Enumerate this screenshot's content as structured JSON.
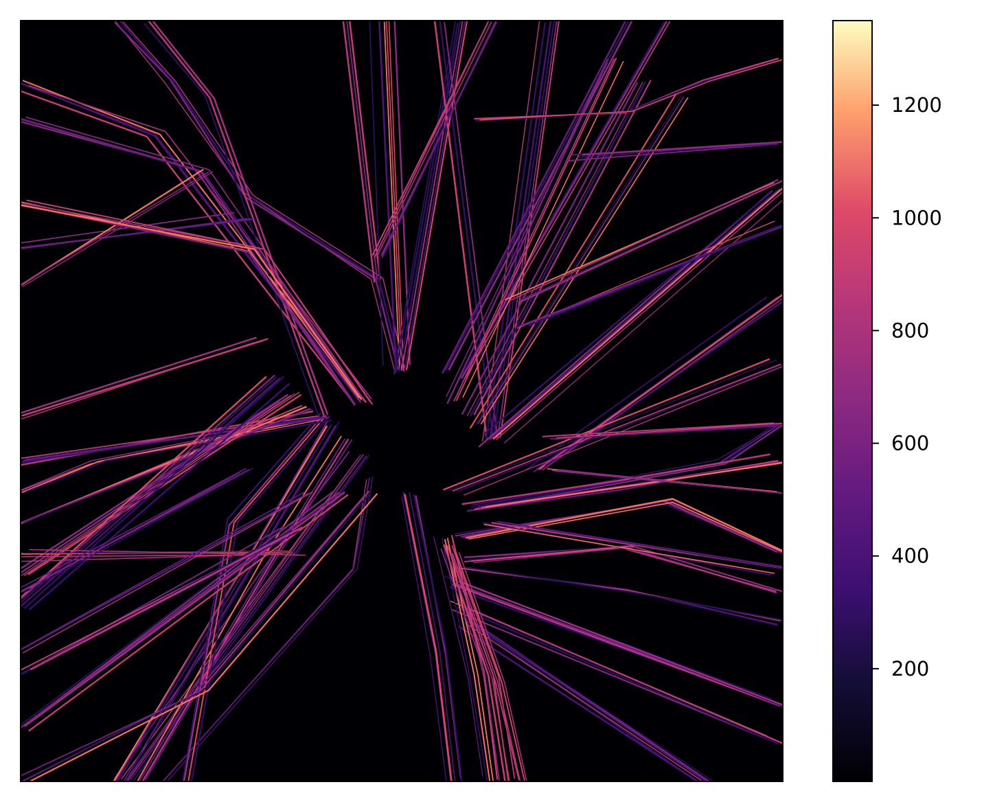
{
  "chart_data": {
    "type": "heatmap",
    "title": "",
    "xlabel": "",
    "ylabel": "",
    "colormap": "magma",
    "colorbar": {
      "range": [
        0,
        1350
      ],
      "ticks": [
        200,
        400,
        600,
        800,
        1000,
        1200
      ],
      "tick_labels": [
        "200",
        "400",
        "600",
        "800",
        "1000",
        "1200"
      ]
    },
    "axes_ticks_visible": false,
    "background_color": "#000004",
    "description_values": {
      "background_value": 0
    },
    "segments": [
      [
        [
          0.5,
          0.46
        ],
        [
          0.47,
          0.34
        ],
        [
          0.3,
          0.23
        ],
        [
          0.2,
          0.08
        ],
        [
          0.13,
          0.0
        ]
      ],
      [
        [
          0.47,
          0.34
        ],
        [
          0.43,
          0.0
        ]
      ],
      [
        [
          0.5,
          0.46
        ],
        [
          0.48,
          0.0
        ]
      ],
      [
        [
          0.5,
          0.46
        ],
        [
          0.58,
          0.0
        ]
      ],
      [
        [
          0.62,
          0.55
        ],
        [
          0.55,
          0.0
        ]
      ],
      [
        [
          0.62,
          0.55
        ],
        [
          0.7,
          0.0
        ]
      ],
      [
        [
          0.45,
          0.5
        ],
        [
          0.18,
          0.15
        ],
        [
          0.0,
          0.08
        ]
      ],
      [
        [
          0.45,
          0.5
        ],
        [
          0.24,
          0.2
        ],
        [
          0.0,
          0.13
        ]
      ],
      [
        [
          0.4,
          0.52
        ],
        [
          0.25,
          0.1
        ],
        [
          0.17,
          0.0
        ]
      ],
      [
        [
          0.56,
          0.46
        ],
        [
          0.8,
          0.0
        ]
      ],
      [
        [
          0.58,
          0.47
        ],
        [
          0.85,
          0.0
        ]
      ],
      [
        [
          0.57,
          0.5
        ],
        [
          0.78,
          0.05
        ]
      ],
      [
        [
          0.59,
          0.52
        ],
        [
          0.82,
          0.08
        ]
      ],
      [
        [
          0.6,
          0.53
        ],
        [
          0.87,
          0.1
        ]
      ],
      [
        [
          0.62,
          0.55
        ],
        [
          1.0,
          0.22
        ]
      ],
      [
        [
          0.68,
          0.59
        ],
        [
          1.0,
          0.36
        ]
      ],
      [
        [
          0.57,
          0.62
        ],
        [
          1.0,
          0.45
        ]
      ],
      [
        [
          0.6,
          0.64
        ],
        [
          0.92,
          0.58
        ],
        [
          1.0,
          0.53
        ]
      ],
      [
        [
          0.6,
          0.64
        ],
        [
          0.8,
          0.61
        ],
        [
          1.0,
          0.58
        ]
      ],
      [
        [
          0.58,
          0.68
        ],
        [
          0.85,
          0.63
        ],
        [
          1.0,
          0.7
        ]
      ],
      [
        [
          0.59,
          0.71
        ],
        [
          0.8,
          0.69
        ],
        [
          1.0,
          0.75
        ]
      ],
      [
        [
          0.58,
          0.72
        ],
        [
          0.8,
          0.75
        ],
        [
          1.0,
          0.79
        ]
      ],
      [
        [
          0.57,
          0.74
        ],
        [
          1.0,
          0.9
        ]
      ],
      [
        [
          0.58,
          0.77
        ],
        [
          1.0,
          0.95
        ]
      ],
      [
        [
          0.59,
          0.79
        ],
        [
          0.9,
          1.0
        ]
      ],
      [
        [
          0.56,
          0.68
        ],
        [
          0.6,
          0.86
        ],
        [
          0.62,
          1.0
        ]
      ],
      [
        [
          0.56,
          0.69
        ],
        [
          0.62,
          0.86
        ],
        [
          0.64,
          1.0
        ]
      ],
      [
        [
          0.57,
          0.7
        ],
        [
          0.63,
          0.87
        ],
        [
          0.66,
          1.0
        ]
      ],
      [
        [
          0.51,
          0.62
        ],
        [
          0.55,
          0.83
        ],
        [
          0.57,
          1.0
        ]
      ],
      [
        [
          0.46,
          0.6
        ],
        [
          0.44,
          0.72
        ],
        [
          0.19,
          1.0
        ]
      ],
      [
        [
          0.45,
          0.57
        ],
        [
          0.37,
          0.68
        ],
        [
          0.14,
          1.0
        ]
      ],
      [
        [
          0.43,
          0.55
        ],
        [
          0.33,
          0.71
        ],
        [
          0.16,
          1.0
        ]
      ],
      [
        [
          0.41,
          0.53
        ],
        [
          0.28,
          0.75
        ],
        [
          0.13,
          1.0
        ]
      ],
      [
        [
          0.4,
          0.52
        ],
        [
          0.28,
          0.66
        ],
        [
          0.22,
          1.0
        ]
      ],
      [
        [
          0.4,
          0.52
        ],
        [
          0.1,
          0.58
        ],
        [
          0.0,
          0.62
        ]
      ],
      [
        [
          0.4,
          0.52
        ],
        [
          0.0,
          0.58
        ]
      ],
      [
        [
          0.38,
          0.51
        ],
        [
          0.0,
          0.66
        ]
      ],
      [
        [
          0.36,
          0.49
        ],
        [
          0.0,
          0.73
        ]
      ],
      [
        [
          0.34,
          0.47
        ],
        [
          0.0,
          0.77
        ]
      ],
      [
        [
          0.32,
          0.42
        ],
        [
          0.0,
          0.52
        ]
      ],
      [
        [
          0.36,
          0.7
        ],
        [
          0.0,
          0.7
        ]
      ],
      [
        [
          0.38,
          0.62
        ],
        [
          0.0,
          0.83
        ]
      ],
      [
        [
          0.42,
          0.62
        ],
        [
          0.0,
          0.93
        ]
      ],
      [
        [
          0.36,
          0.67
        ],
        [
          0.0,
          0.86
        ]
      ],
      [
        [
          0.3,
          0.59
        ],
        [
          0.0,
          0.75
        ]
      ],
      [
        [
          0.46,
          0.62
        ],
        [
          0.24,
          0.88
        ],
        [
          0.0,
          1.0
        ]
      ],
      [
        [
          0.47,
          0.31
        ],
        [
          0.62,
          0.0
        ]
      ],
      [
        [
          0.3,
          0.26
        ],
        [
          0.0,
          0.3
        ]
      ],
      [
        [
          0.25,
          0.2
        ],
        [
          0.0,
          0.35
        ]
      ],
      [
        [
          0.45,
          0.5
        ],
        [
          0.31,
          0.3
        ],
        [
          0.0,
          0.24
        ]
      ],
      [
        [
          0.6,
          0.13
        ],
        [
          0.8,
          0.12
        ],
        [
          0.9,
          0.08
        ],
        [
          1.0,
          0.05
        ]
      ],
      [
        [
          0.73,
          0.18
        ],
        [
          1.0,
          0.16
        ]
      ],
      [
        [
          0.65,
          0.37
        ],
        [
          1.0,
          0.21
        ]
      ],
      [
        [
          0.66,
          0.4
        ],
        [
          1.0,
          0.27
        ]
      ],
      [
        [
          0.7,
          0.55
        ],
        [
          1.0,
          0.53
        ]
      ],
      [
        [
          0.7,
          0.59
        ],
        [
          1.0,
          0.62
        ]
      ],
      [
        [
          0.62,
          0.66
        ],
        [
          1.0,
          0.72
        ]
      ]
    ]
  }
}
